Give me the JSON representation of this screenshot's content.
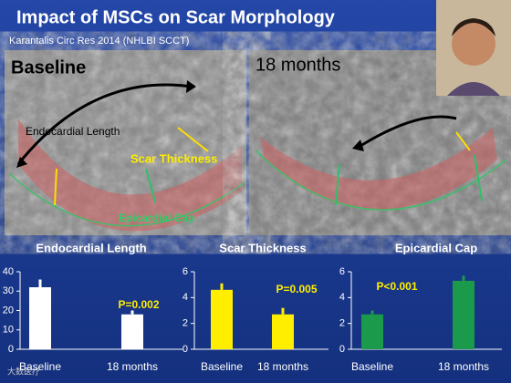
{
  "slide": {
    "title": "Impact of MSCs on Scar Morphology",
    "subtitle": "Karantalis Circ Res 2014 (NHLBI SCCT)",
    "watermark": "大数医疗"
  },
  "images": [
    {
      "label": "Baseline",
      "annotations": [
        "Endocardial Length",
        "Scar Thickness",
        "Epicardial Cap"
      ]
    },
    {
      "label": "18 months"
    }
  ],
  "chart_data": [
    {
      "type": "bar",
      "title": "Endocardial Length",
      "categories": [
        "Baseline",
        "18 months"
      ],
      "values": [
        32,
        18
      ],
      "errors": [
        4,
        2
      ],
      "color": "#ffffff",
      "ylim": [
        0,
        40
      ],
      "yticks": [
        0,
        10,
        20,
        30,
        40
      ],
      "annotation": "P=0.002"
    },
    {
      "type": "bar",
      "title": "Scar Thickness",
      "categories": [
        "Baseline",
        "18 months"
      ],
      "values": [
        4.6,
        2.7
      ],
      "errors": [
        0.5,
        0.5
      ],
      "color": "#ffee00",
      "ylim": [
        0,
        6
      ],
      "yticks": [
        0,
        2,
        4,
        6
      ],
      "annotation": "P=0.005"
    },
    {
      "type": "bar",
      "title": "Epicardial Cap",
      "categories": [
        "Baseline",
        "18 months"
      ],
      "values": [
        2.7,
        5.3
      ],
      "errors": [
        0.3,
        0.4
      ],
      "color": "#1a9a4a",
      "ylim": [
        0,
        6
      ],
      "yticks": [
        0,
        2,
        4,
        6
      ],
      "annotation": "P<0.001"
    }
  ]
}
